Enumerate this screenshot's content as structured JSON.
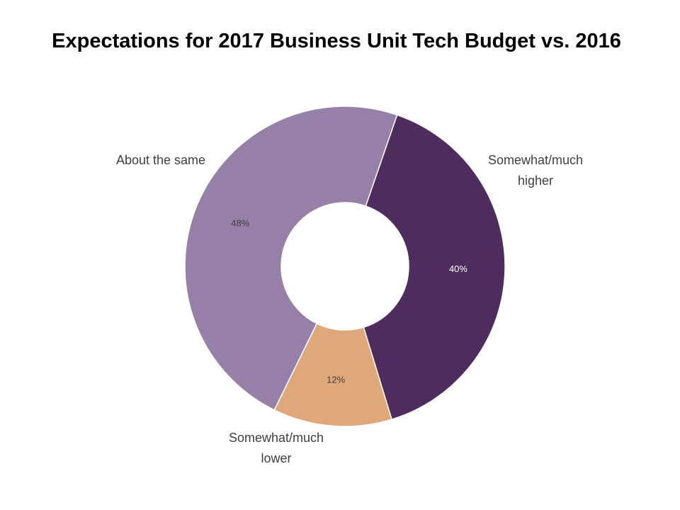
{
  "chart_data": {
    "type": "pie",
    "title": "Expectations for 2017 Business Unit Tech Budget vs. 2016",
    "variant": "donut",
    "slices": [
      {
        "category": [
          "Somewhat/much",
          "higher"
        ],
        "value": 40,
        "label": "40%",
        "color": "#4e2d5e",
        "label_color": "#ffffff"
      },
      {
        "category": [
          "Somewhat/much",
          "lower"
        ],
        "value": 12,
        "label": "12%",
        "color": "#dfa87a",
        "label_color": "#404040"
      },
      {
        "category": [
          "About the same"
        ],
        "value": 48,
        "label": "48%",
        "color": "#9780a8",
        "label_color": "#404040"
      }
    ],
    "legend": "none"
  }
}
